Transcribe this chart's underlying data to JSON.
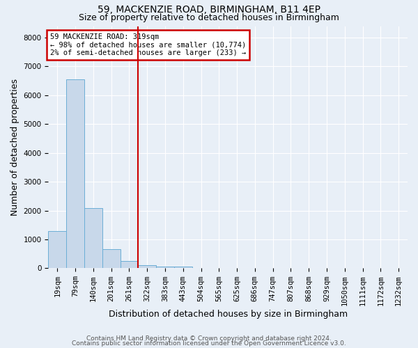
{
  "title1": "59, MACKENZIE ROAD, BIRMINGHAM, B11 4EP",
  "title2": "Size of property relative to detached houses in Birmingham",
  "xlabel": "Distribution of detached houses by size in Birmingham",
  "ylabel": "Number of detached properties",
  "annotation_line1": "59 MACKENZIE ROAD: 319sqm",
  "annotation_line2": "← 98% of detached houses are smaller (10,774)",
  "annotation_line3": "2% of semi-detached houses are larger (233) →",
  "footer1": "Contains HM Land Registry data © Crown copyright and database right 2024.",
  "footer2": "Contains public sector information licensed under the Open Government Licence v3.0.",
  "bar_color": "#c8d8ea",
  "bar_edge_color": "#6baed6",
  "categories": [
    "19sqm",
    "79sqm",
    "140sqm",
    "201sqm",
    "261sqm",
    "322sqm",
    "383sqm",
    "443sqm",
    "504sqm",
    "565sqm",
    "625sqm",
    "686sqm",
    "747sqm",
    "807sqm",
    "868sqm",
    "929sqm",
    "1050sqm",
    "1111sqm",
    "1172sqm",
    "1232sqm"
  ],
  "values": [
    1280,
    6560,
    2080,
    660,
    260,
    110,
    70,
    50,
    0,
    0,
    0,
    0,
    0,
    0,
    0,
    0,
    0,
    0,
    0,
    0
  ],
  "property_bin_index": 5,
  "ylim": [
    0,
    8400
  ],
  "yticks": [
    0,
    1000,
    2000,
    3000,
    4000,
    5000,
    6000,
    7000,
    8000
  ],
  "background_color": "#e8eff7",
  "plot_bg_color": "#e8eff7",
  "vline_color": "#cc0000",
  "annotation_box_color": "#cc0000",
  "grid_color": "#ffffff",
  "title1_fontsize": 10,
  "title2_fontsize": 9,
  "axis_label_fontsize": 9,
  "tick_fontsize": 7.5,
  "footer_fontsize": 6.5
}
